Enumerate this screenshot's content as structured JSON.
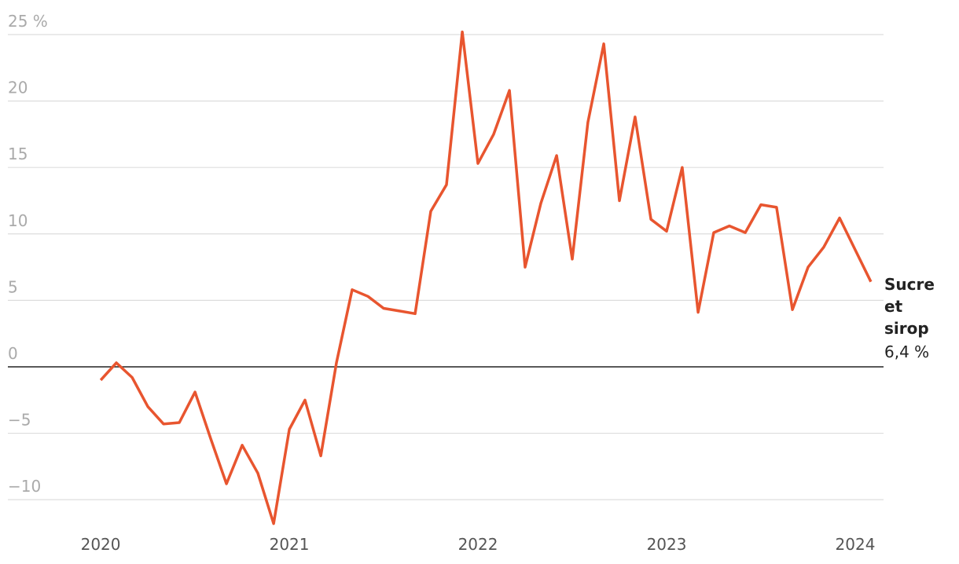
{
  "chart_data": {
    "type": "line",
    "x": [
      2020,
      2020.083,
      2020.167,
      2020.25,
      2020.333,
      2020.417,
      2020.5,
      2020.583,
      2020.667,
      2020.75,
      2020.833,
      2020.917,
      2021,
      2021.083,
      2021.167,
      2021.25,
      2021.333,
      2021.417,
      2021.5,
      2021.583,
      2021.667,
      2021.75,
      2021.833,
      2021.917,
      2022,
      2022.083,
      2022.167,
      2022.25,
      2022.333,
      2022.417,
      2022.5,
      2022.583,
      2022.667,
      2022.75,
      2022.833,
      2022.917,
      2023,
      2023.083,
      2023.167,
      2023.25,
      2023.333,
      2023.417,
      2023.5,
      2023.583,
      2023.667,
      2023.75,
      2023.833,
      2023.917,
      2024,
      2024.083
    ],
    "series": [
      {
        "name": "Sucre et sirop",
        "color": "#e8552f",
        "values": [
          -1.0,
          0.3,
          -0.8,
          -3.0,
          -4.3,
          -4.2,
          -1.9,
          -5.4,
          -8.8,
          -5.9,
          -8.0,
          -11.8,
          -4.7,
          -2.5,
          -6.7,
          0.3,
          5.8,
          5.3,
          4.4,
          4.2,
          4.0,
          11.7,
          13.7,
          25.2,
          15.3,
          17.5,
          20.8,
          7.5,
          12.3,
          15.9,
          8.1,
          18.4,
          24.3,
          12.5,
          18.8,
          11.1,
          10.2,
          15.0,
          4.1,
          10.1,
          10.6,
          10.1,
          12.2,
          12.0,
          4.3,
          7.5,
          9.0,
          11.2,
          8.8,
          6.4
        ],
        "value_labels": [
          null,
          null,
          null,
          null,
          null,
          null,
          null,
          null,
          null,
          null,
          null,
          null,
          null,
          null,
          null,
          null,
          null,
          null,
          null,
          null,
          null,
          null,
          null,
          null,
          null,
          null,
          null,
          null,
          null,
          null,
          null,
          null,
          null,
          null,
          null,
          null,
          null,
          null,
          null,
          null,
          null,
          null,
          null,
          null,
          null,
          null,
          null,
          null,
          null,
          "6,4 %"
        ]
      }
    ],
    "xlim": [
      2019.508,
      2024.15
    ],
    "xticks": [
      2020,
      2021,
      2022,
      2023,
      2024
    ],
    "ylim": [
      -12,
      25
    ],
    "yticks": [
      {
        "value": 25,
        "label": "25 %"
      },
      20,
      15,
      10,
      5,
      0,
      {
        "value": -5,
        "label": "−5"
      },
      {
        "value": -10,
        "label": "−10"
      }
    ],
    "grid": true
  }
}
